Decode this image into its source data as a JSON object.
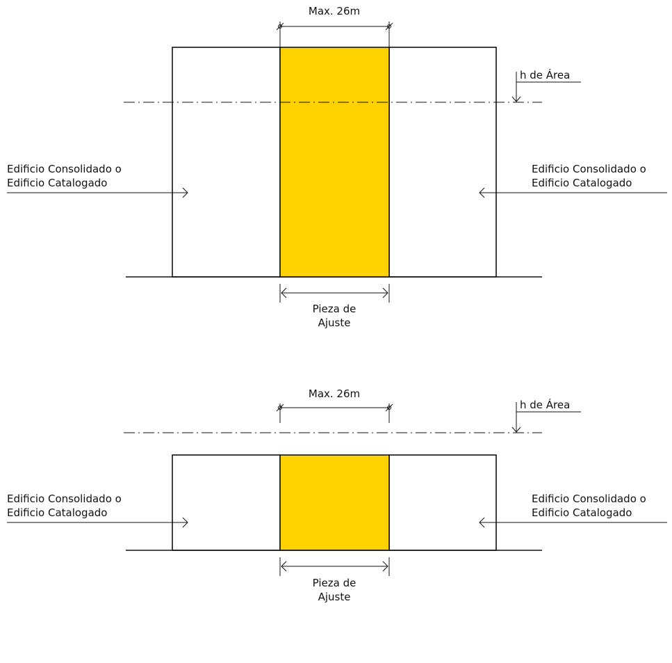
{
  "diagrams": [
    {
      "max_label": "Max. 26m",
      "h_label": "h de Área",
      "left_label": [
        "Edificio Consolidado o",
        "Edificio Catalogado"
      ],
      "right_label": [
        "Edificio Consolidado o",
        "Edificio Catalogado"
      ],
      "bottom_label": [
        "Pieza de",
        "Ajuste"
      ]
    },
    {
      "max_label": "Max. 26m",
      "h_label": "h de Área",
      "left_label": [
        "Edificio Consolidado o",
        "Edificio Catalogado"
      ],
      "right_label": [
        "Edificio Consolidado o",
        "Edificio Catalogado"
      ],
      "bottom_label": [
        "Pieza de",
        "Ajuste"
      ]
    }
  ],
  "colors": {
    "infill": "#FFD200",
    "line": "#111111"
  }
}
